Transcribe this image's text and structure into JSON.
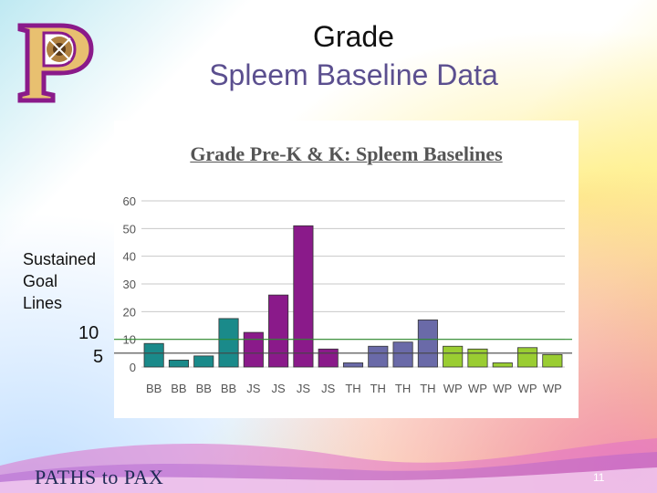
{
  "slide": {
    "title_line1": "Grade",
    "title_line2": "Spleem Baseline Data",
    "side_label": [
      "Sustained",
      "Goal",
      "Lines"
    ],
    "goal_label_10": "10",
    "goal_label_5": "5",
    "footer": "PATHS to PAX",
    "page_number": "11",
    "logo_letter": "P"
  },
  "chart_data": {
    "type": "bar",
    "title": "Grade Pre-K & K: Spleem Baselines",
    "categories": [
      "BB",
      "BB",
      "BB",
      "BB",
      "JS",
      "JS",
      "JS",
      "JS",
      "TH",
      "TH",
      "TH",
      "TH",
      "WP",
      "WP",
      "WP",
      "WP",
      "WP"
    ],
    "values": [
      8.5,
      2.5,
      4,
      17.5,
      12.5,
      26,
      51,
      6.5,
      1.5,
      7.5,
      9,
      17,
      7.5,
      6.5,
      1.5,
      7,
      4.5
    ],
    "colors": [
      "#1a8a8a",
      "#1a8a8a",
      "#1a8a8a",
      "#1a8a8a",
      "#8a1a8a",
      "#8a1a8a",
      "#8a1a8a",
      "#8a1a8a",
      "#6a6aa8",
      "#6a6aa8",
      "#6a6aa8",
      "#6a6aa8",
      "#9acd32",
      "#9acd32",
      "#9acd32",
      "#9acd32",
      "#9acd32"
    ],
    "yticks": [
      0,
      10,
      20,
      30,
      40,
      50,
      60
    ],
    "ylim": [
      0,
      60
    ],
    "goal_lines": [
      10,
      5
    ],
    "goal_line_colors": [
      "#2e8b2e",
      "#444444"
    ],
    "grid": true,
    "xlabel": "",
    "ylabel": ""
  }
}
